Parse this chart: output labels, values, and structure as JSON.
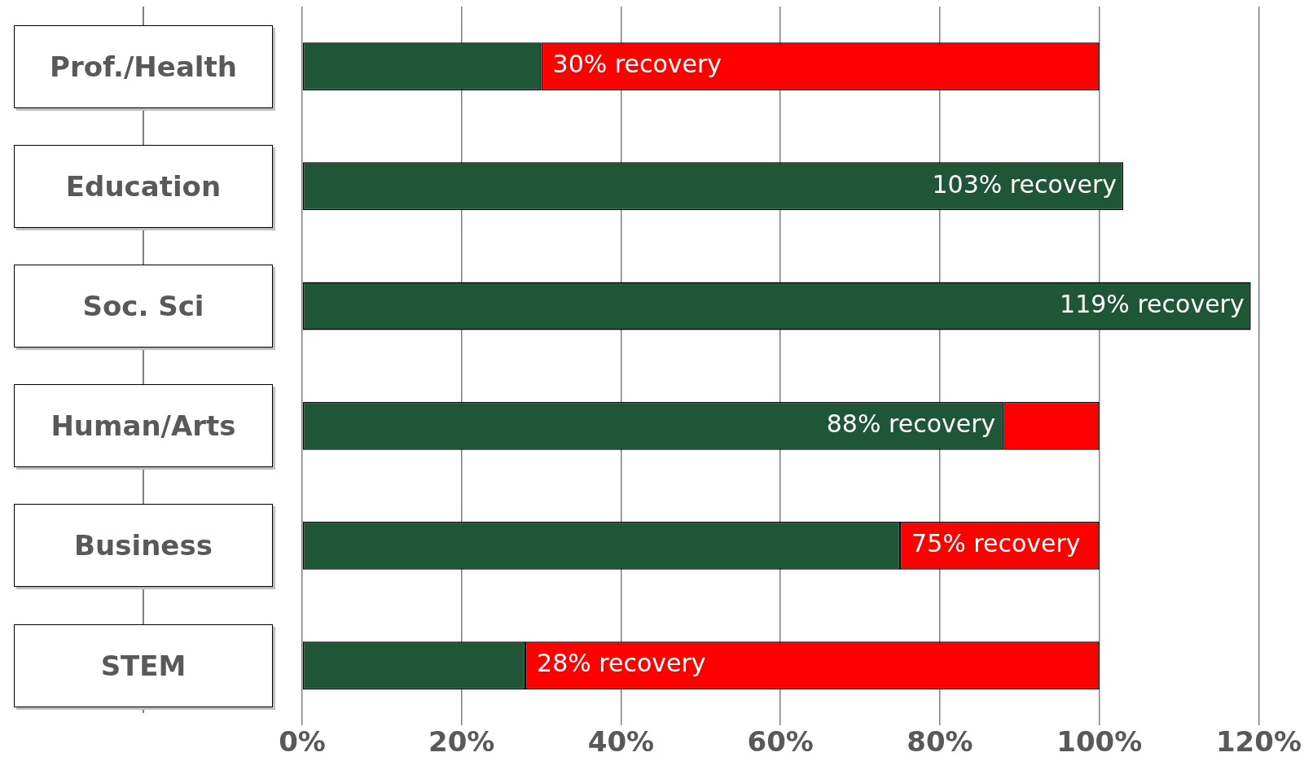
{
  "chart_data": {
    "type": "bar",
    "orientation": "horizontal",
    "stacked": true,
    "categories": [
      "Prof./Health",
      "Education",
      "Soc. Sci",
      "Human/Arts",
      "Business",
      "STEM"
    ],
    "series": [
      {
        "color": "#1e5637",
        "values": [
          30,
          103,
          119,
          88,
          75,
          28
        ],
        "value_labels": [
          "30% recovery",
          "103% recovery",
          "119% recovery",
          "88% recovery",
          "75% recovery",
          "28% recovery"
        ]
      },
      {
        "color": "#ff0000",
        "values": [
          70,
          0,
          0,
          12,
          25,
          72
        ]
      }
    ],
    "xlim": [
      0,
      120
    ],
    "xticks": [
      {
        "value": 0,
        "label": "0%"
      },
      {
        "value": 20,
        "label": "20%"
      },
      {
        "value": 40,
        "label": "40%"
      },
      {
        "value": 60,
        "label": "60%"
      },
      {
        "value": 80,
        "label": "80%"
      },
      {
        "value": 100,
        "label": "100%"
      },
      {
        "value": 120,
        "label": "120%"
      }
    ],
    "grid": "x",
    "legend": false
  }
}
